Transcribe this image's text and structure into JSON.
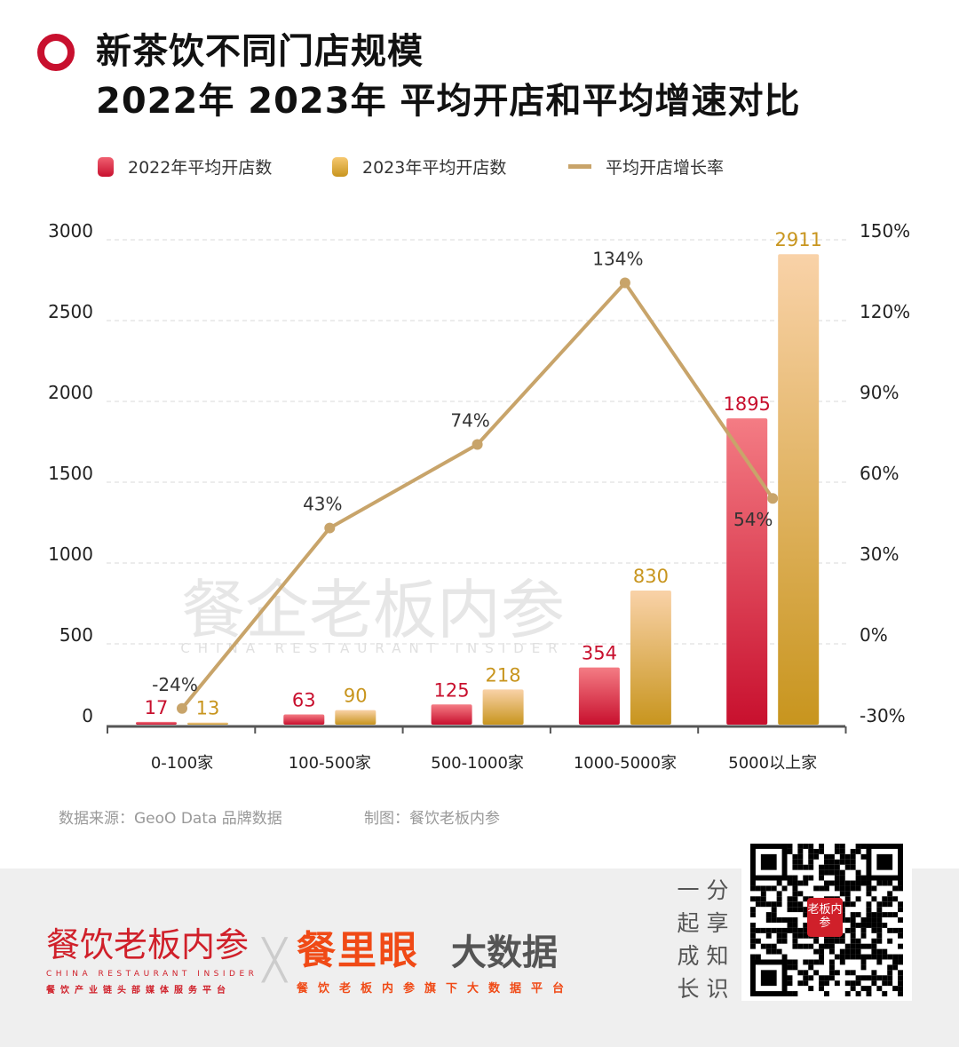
{
  "title": {
    "line1": "新茶饮不同门店规模",
    "line2": "2022年 2023年 平均开店和平均增速对比"
  },
  "legend": [
    {
      "label": "2022年平均开店数",
      "color": "#d42a3c"
    },
    {
      "label": "2023年平均开店数",
      "color": "#d6a64a"
    },
    {
      "label": "平均开店增长率",
      "color": "#c8a46a"
    }
  ],
  "chart_data": {
    "type": "bar+line",
    "categories": [
      "0-100家",
      "100-500家",
      "500-1000家",
      "1000-5000家",
      "5000以上家"
    ],
    "series": [
      {
        "name": "2022年平均开店数",
        "axis": "left",
        "values": [
          17,
          63,
          125,
          354,
          1895
        ],
        "labels": [
          "17",
          "63",
          "125",
          "354",
          "1895"
        ]
      },
      {
        "name": "2023年平均开店数",
        "axis": "left",
        "values": [
          13,
          90,
          218,
          830,
          2911
        ],
        "labels": [
          "13",
          "90",
          "218",
          "830",
          "2911"
        ]
      },
      {
        "name": "平均开店增长率",
        "axis": "right",
        "type": "line",
        "values": [
          -24,
          43,
          74,
          134,
          54
        ],
        "labels": [
          "-24%",
          "43%",
          "74%",
          "134%",
          "54%"
        ]
      }
    ],
    "left_axis": {
      "ylim": [
        0,
        3000
      ],
      "ticks": [
        "0",
        "500",
        "1000",
        "1500",
        "2000",
        "2500",
        "3000"
      ]
    },
    "right_axis": {
      "ylim": [
        -30,
        150
      ],
      "ticks": [
        "-30%",
        "0%",
        "30%",
        "60%",
        "90%",
        "120%",
        "150%"
      ]
    },
    "grid": true,
    "legend_position": "top"
  },
  "watermark": {
    "text": "餐企老板内参",
    "sub": "CHINA RESTAURANT INSIDER"
  },
  "source": {
    "data": "数据来源：GeoO Data 品牌数据",
    "maker": "制图：餐饮老板内参"
  },
  "footer": {
    "brand1": "餐饮老板内参",
    "brand1_sub": "CHINA RESTAURANT INSIDER",
    "brand1_tag": "餐饮产业链头部媒体服务平台",
    "brand2_a": "餐里眼",
    "brand2_b": "大数据",
    "brand2_tag": "餐饮老板内参旗下大数据平台",
    "slogan_col1": "一起成长",
    "slogan_col2": "分享知识",
    "qr_logo": "老板内参"
  }
}
